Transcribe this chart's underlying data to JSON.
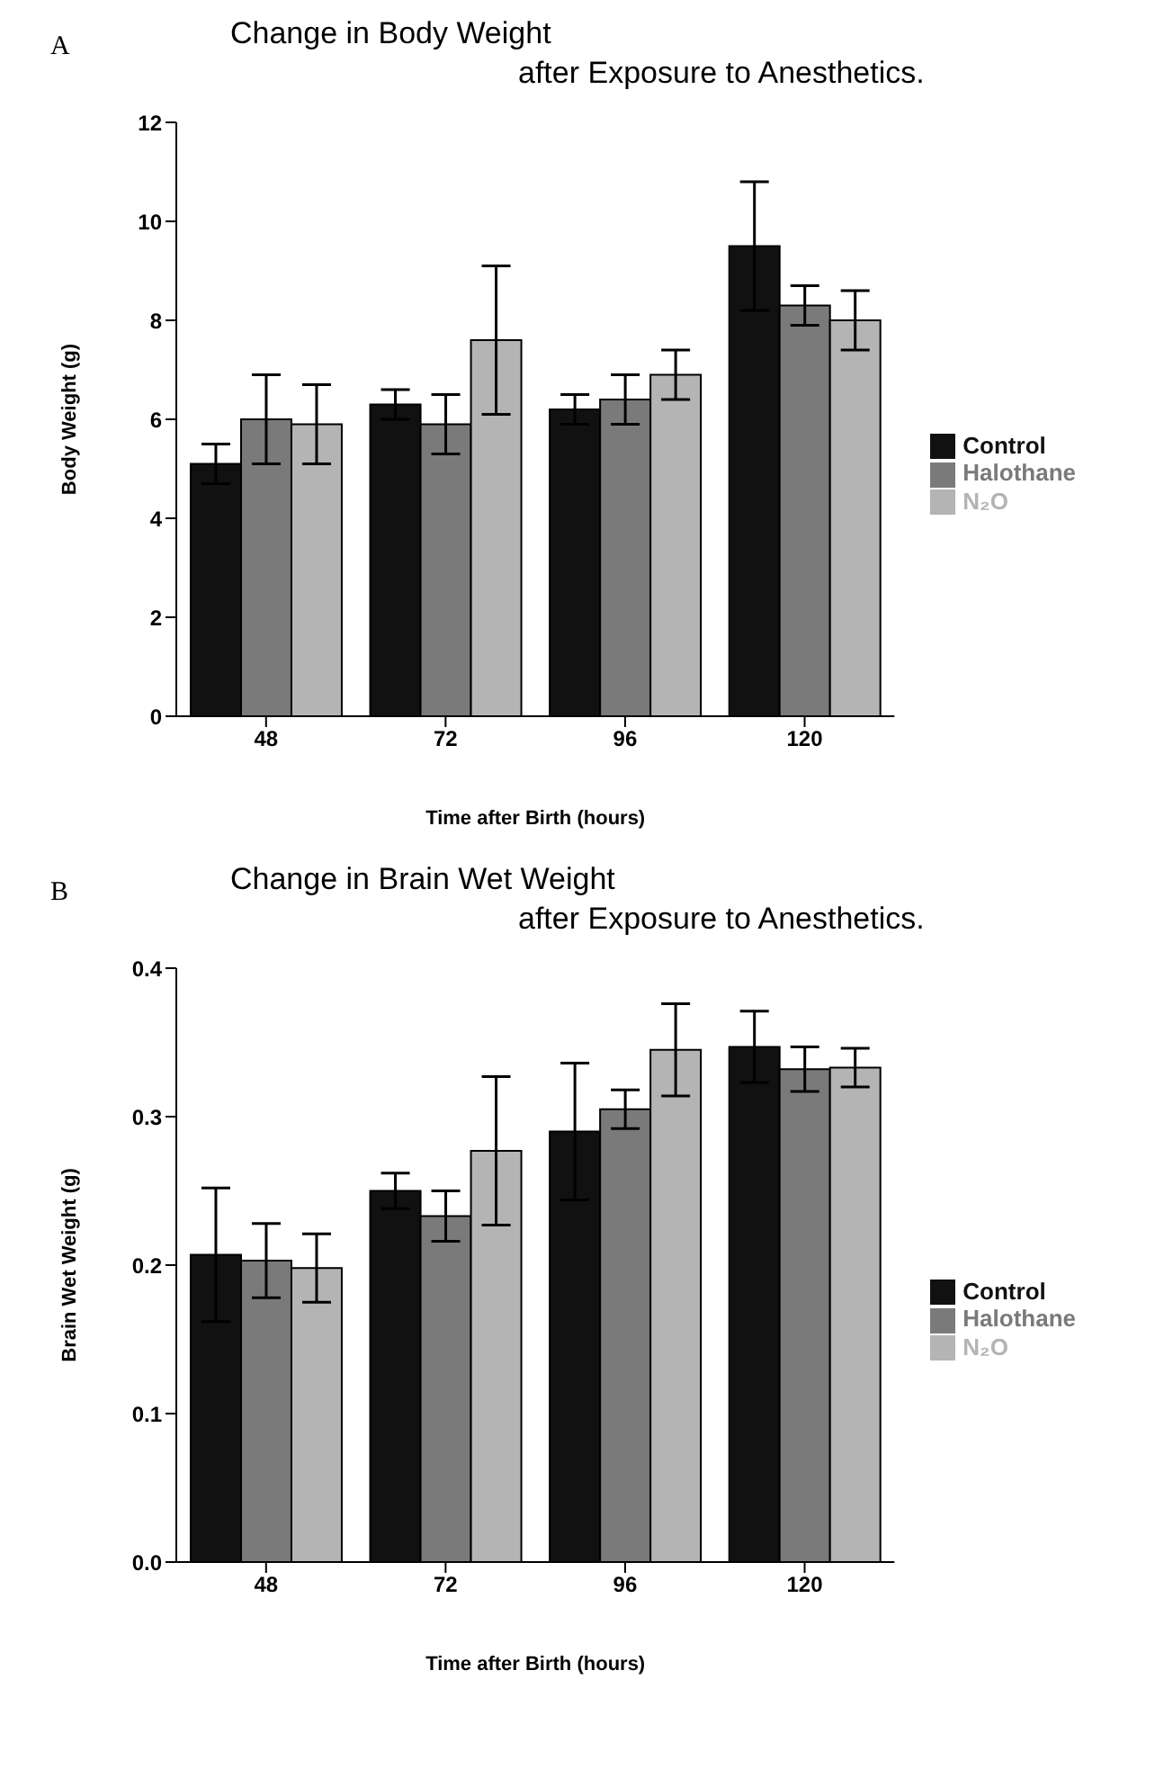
{
  "chart_data": [
    {
      "type": "bar",
      "title": "Change in Body Weight\nafter Exposure to Anesthetics.",
      "xlabel": "Time after Birth    (hours)",
      "ylabel": "Body Weight (g)",
      "annotations": [
        "A"
      ],
      "categories": [
        "48",
        "72",
        "96",
        "120"
      ],
      "series": [
        {
          "name": "Control",
          "color": "#111111",
          "values": [
            5.1,
            6.3,
            6.2,
            9.5
          ],
          "errors": [
            0.4,
            0.3,
            0.3,
            1.3
          ]
        },
        {
          "name": "Halothane",
          "color": "#7a7a7a",
          "values": [
            6.0,
            5.9,
            6.4,
            8.3
          ],
          "errors": [
            0.9,
            0.6,
            0.5,
            0.4
          ]
        },
        {
          "name": "N₂O",
          "color": "#b4b4b4",
          "values": [
            5.9,
            7.6,
            6.9,
            8.0
          ],
          "errors": [
            0.8,
            1.5,
            0.5,
            0.6
          ]
        }
      ],
      "ylim": [
        0,
        12
      ],
      "yticks": [
        0,
        2,
        4,
        6,
        8,
        10,
        12
      ],
      "grid": false,
      "legend": "right"
    },
    {
      "type": "bar",
      "title": "Change in Brain Wet Weight\nafter Exposure to Anesthetics.",
      "xlabel": "Time after Birth    (hours)",
      "ylabel": "Brain Wet Weight (g)",
      "annotations": [
        "B"
      ],
      "categories": [
        "48",
        "72",
        "96",
        "120"
      ],
      "series": [
        {
          "name": "Control",
          "color": "#111111",
          "values": [
            0.207,
            0.25,
            0.29,
            0.347
          ],
          "errors": [
            0.045,
            0.012,
            0.046,
            0.024
          ]
        },
        {
          "name": "Halothane",
          "color": "#7a7a7a",
          "values": [
            0.203,
            0.233,
            0.305,
            0.332
          ],
          "errors": [
            0.025,
            0.017,
            0.013,
            0.015
          ]
        },
        {
          "name": "N₂O",
          "color": "#b4b4b4",
          "values": [
            0.198,
            0.277,
            0.345,
            0.333
          ],
          "errors": [
            0.023,
            0.05,
            0.031,
            0.013
          ]
        }
      ],
      "ylim": [
        0,
        0.4
      ],
      "yticks": [
        {
          "value": 0,
          "label": "0.0"
        },
        0.1,
        0.2,
        0.3,
        0.4
      ],
      "grid": false,
      "legend": "right"
    }
  ]
}
